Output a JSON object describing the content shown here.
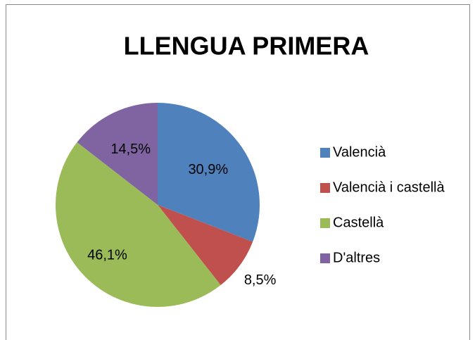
{
  "chart_data": {
    "type": "pie",
    "title": "LLENGUA PRIMERA",
    "categories": [
      "Valencià",
      "Valencià i castellà",
      "Castellà",
      "D'altres"
    ],
    "values": [
      30.9,
      8.5,
      46.1,
      14.5
    ],
    "value_labels": [
      "30,9%",
      "8,5%",
      "46,1%",
      "14,5%"
    ],
    "colors": [
      "#4f81bd",
      "#c0504d",
      "#9bbb59",
      "#8064a2"
    ],
    "legend": "right"
  }
}
